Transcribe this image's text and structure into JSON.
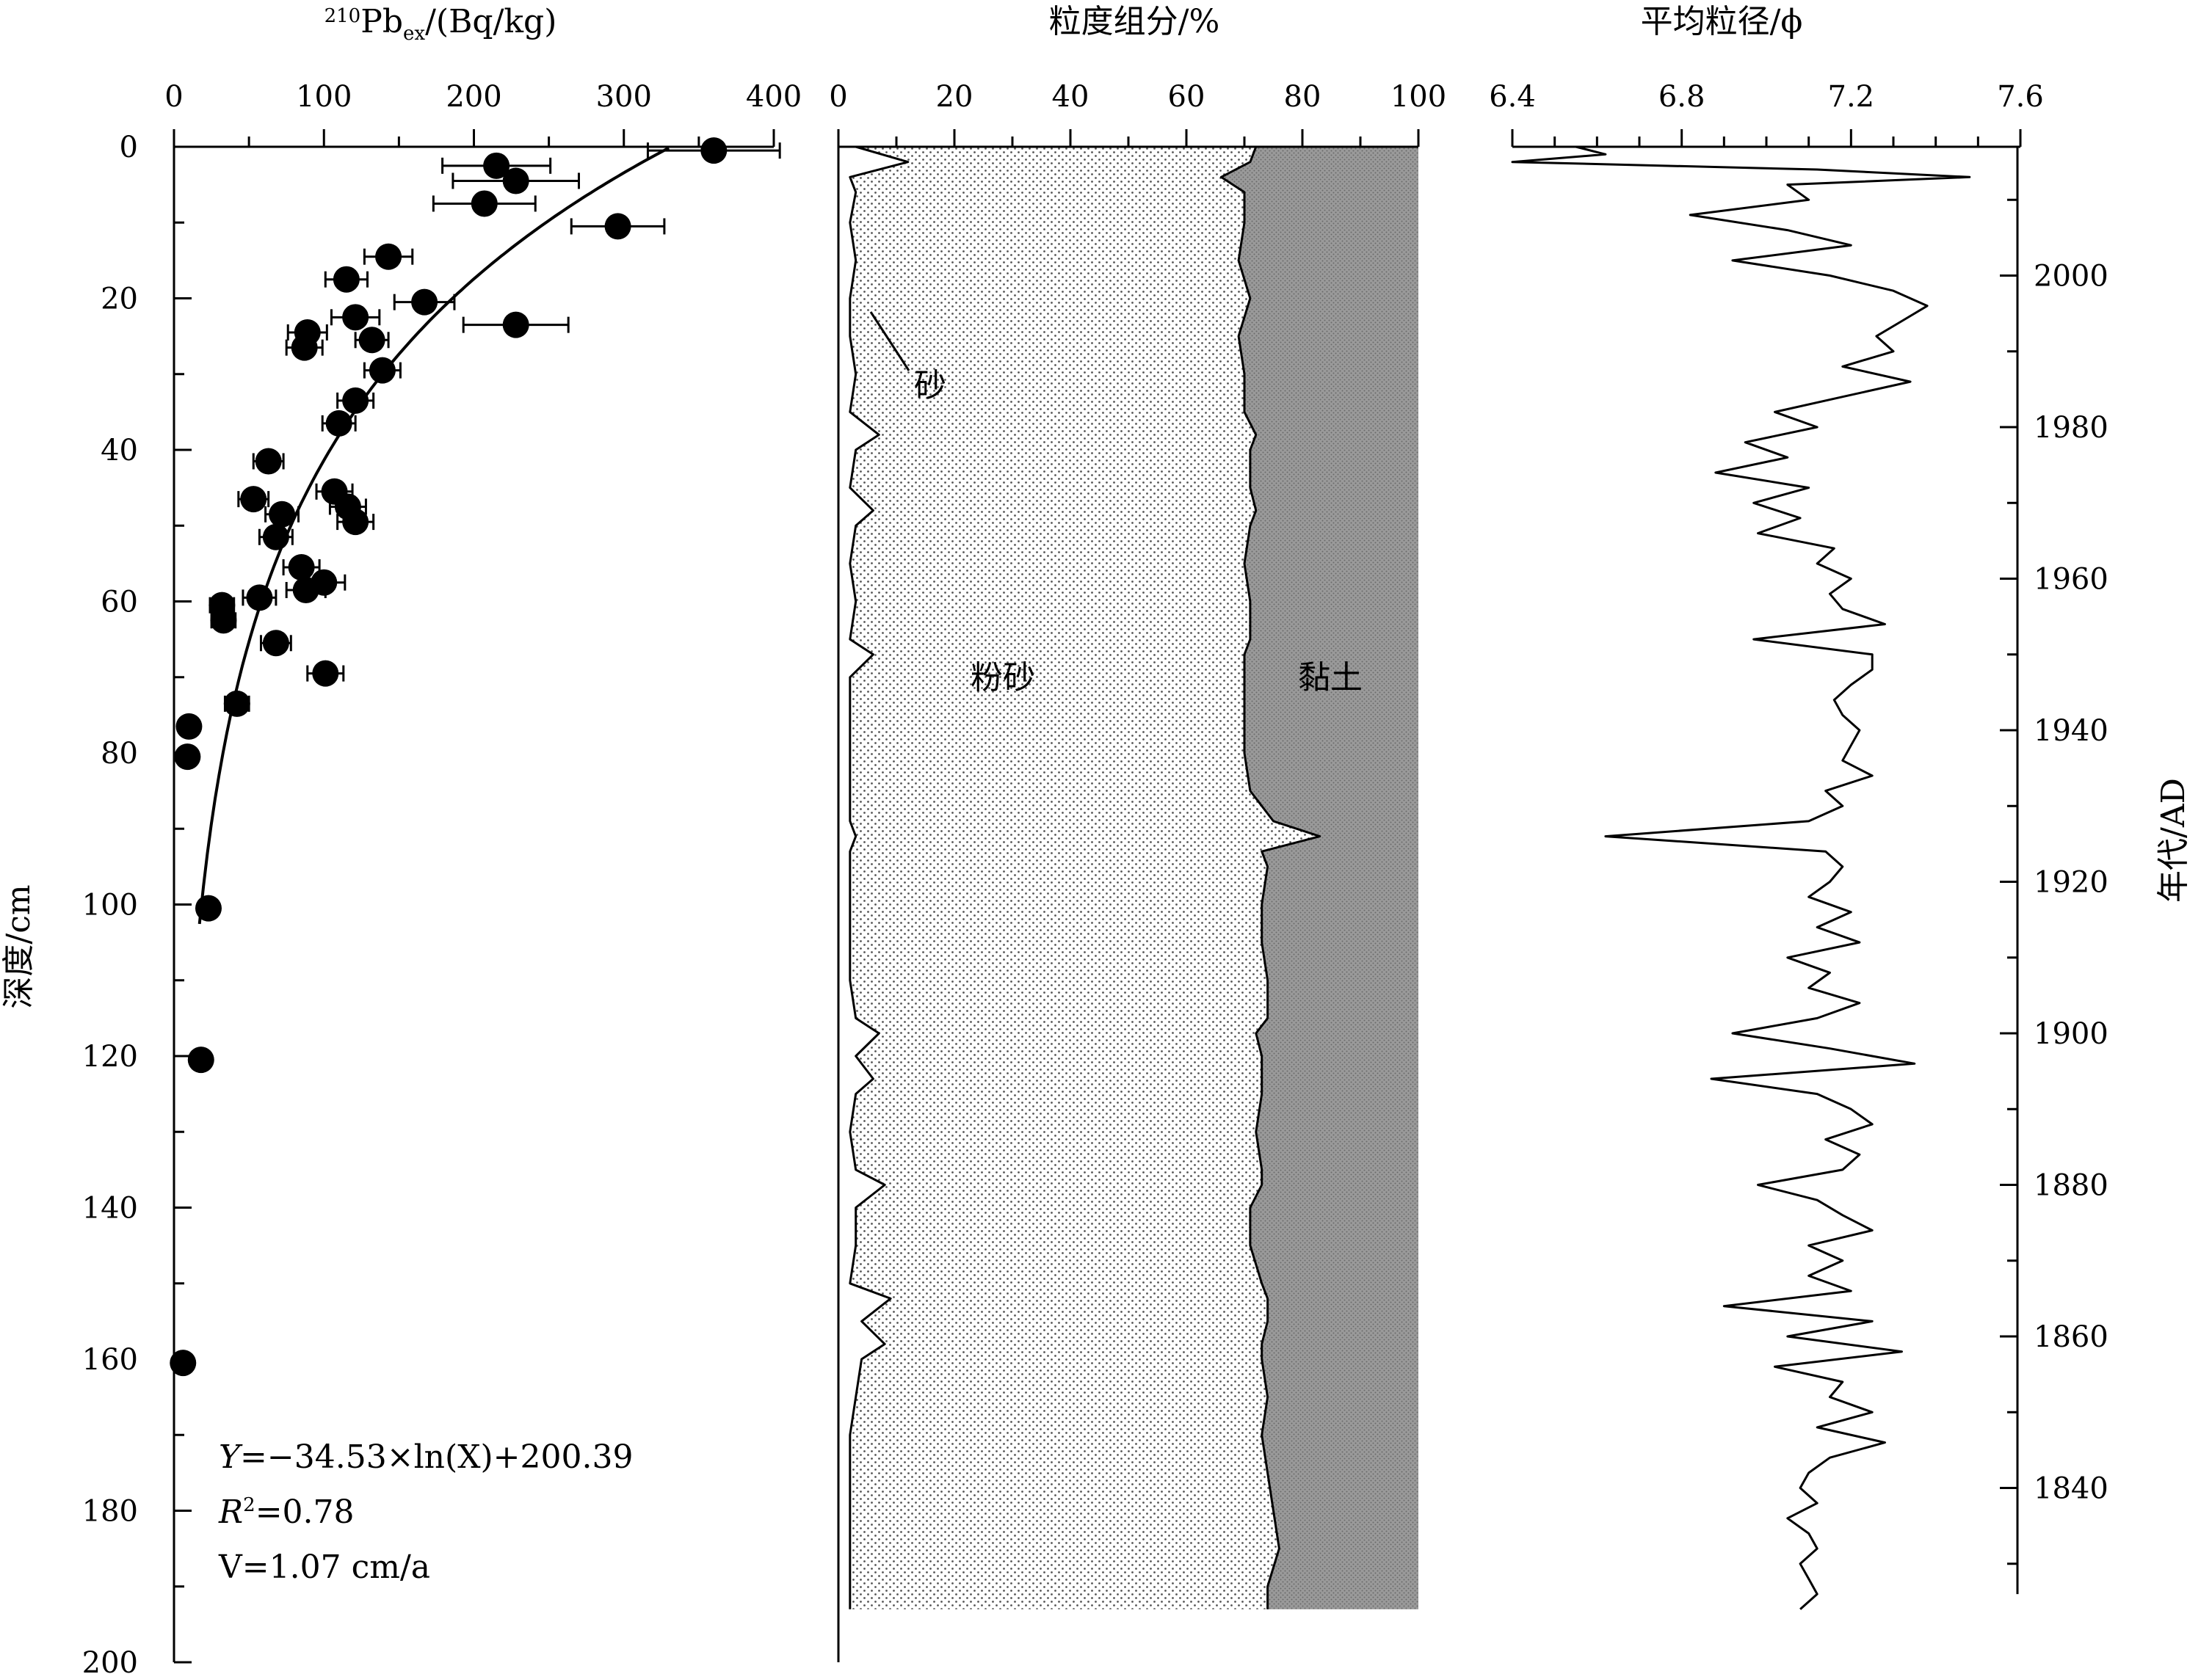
{
  "chart_data": [
    {
      "panel": "pb210",
      "type": "scatter",
      "xlabel_pre": "210",
      "xlabel_main": "Pb",
      "xlabel_sub": "ex",
      "xlabel_post": "/(Bq/kg)",
      "ylabel": "深度/cm",
      "xlim": [
        0,
        400
      ],
      "ylim": [
        0,
        200
      ],
      "xticks": [
        "0",
        "100",
        "200",
        "300",
        "400"
      ],
      "yticks": [
        "0",
        "20",
        "40",
        "60",
        "80",
        "100",
        "120",
        "140",
        "160",
        "180",
        "200"
      ],
      "fit_equation": "Y=−34.53×ln(X)+200.39",
      "fit_equation_y": "Y",
      "fit_equation_rest": "=−34.53×ln(X)+200.39",
      "r2_label": "R",
      "r2_sup": "2",
      "r2_value": "=0.78",
      "rate": "V=1.07 cm/a",
      "fit": {
        "a": -34.53,
        "b": 200.39,
        "x_range": [
          17,
          330
        ]
      },
      "points": [
        {
          "x": 360,
          "depth": 0.5,
          "err": 44
        },
        {
          "x": 215,
          "depth": 2.5,
          "err": 36
        },
        {
          "x": 228,
          "depth": 4.5,
          "err": 42
        },
        {
          "x": 207,
          "depth": 7.5,
          "err": 34
        },
        {
          "x": 296,
          "depth": 10.5,
          "err": 31
        },
        {
          "x": 143,
          "depth": 14.5,
          "err": 16
        },
        {
          "x": 115,
          "depth": 17.5,
          "err": 14
        },
        {
          "x": 167,
          "depth": 20.5,
          "err": 20
        },
        {
          "x": 121,
          "depth": 22.5,
          "err": 16
        },
        {
          "x": 228,
          "depth": 23.5,
          "err": 35
        },
        {
          "x": 89,
          "depth": 24.5,
          "err": 13
        },
        {
          "x": 132,
          "depth": 25.5,
          "err": 11
        },
        {
          "x": 87,
          "depth": 26.5,
          "err": 12
        },
        {
          "x": 139,
          "depth": 29.5,
          "err": 12
        },
        {
          "x": 121,
          "depth": 33.5,
          "err": 12
        },
        {
          "x": 110,
          "depth": 36.5,
          "err": 11
        },
        {
          "x": 63,
          "depth": 41.5,
          "err": 10
        },
        {
          "x": 107,
          "depth": 45.5,
          "err": 12
        },
        {
          "x": 53,
          "depth": 46.5,
          "err": 10
        },
        {
          "x": 116,
          "depth": 47.5,
          "err": 12
        },
        {
          "x": 72,
          "depth": 48.5,
          "err": 11
        },
        {
          "x": 121,
          "depth": 49.5,
          "err": 12
        },
        {
          "x": 68,
          "depth": 51.5,
          "err": 11
        },
        {
          "x": 85,
          "depth": 55.5,
          "err": 12
        },
        {
          "x": 100,
          "depth": 57.5,
          "err": 14
        },
        {
          "x": 88,
          "depth": 58.5,
          "err": 13
        },
        {
          "x": 57,
          "depth": 59.5,
          "err": 11
        },
        {
          "x": 32,
          "depth": 60.5,
          "err": 8
        },
        {
          "x": 33,
          "depth": 62.5,
          "err": 8
        },
        {
          "x": 68,
          "depth": 65.5,
          "err": 10
        },
        {
          "x": 101,
          "depth": 69.5,
          "err": 12
        },
        {
          "x": 42,
          "depth": 73.5,
          "err": 8
        },
        {
          "x": 10,
          "depth": 76.5,
          "err": 0
        },
        {
          "x": 9,
          "depth": 80.5,
          "err": 0
        },
        {
          "x": 23,
          "depth": 100.5,
          "err": 0
        },
        {
          "x": 18,
          "depth": 120.5,
          "err": 0
        },
        {
          "x": 6,
          "depth": 160.5,
          "err": 0
        }
      ]
    },
    {
      "panel": "grain_components",
      "type": "area",
      "title": "粒度组分/%",
      "xlim": [
        0,
        100
      ],
      "xticks": [
        "0",
        "20",
        "40",
        "60",
        "80",
        "100"
      ],
      "annotations": {
        "sand": "砂",
        "silt": "粉砂",
        "clay": "黏土"
      },
      "depth": [
        0,
        2,
        4,
        6,
        10,
        15,
        20,
        25,
        30,
        35,
        38,
        40,
        45,
        48,
        50,
        55,
        60,
        65,
        67,
        70,
        75,
        80,
        85,
        89,
        91,
        93,
        95,
        100,
        105,
        110,
        115,
        117,
        120,
        123,
        125,
        130,
        135,
        137,
        140,
        145,
        150,
        152,
        155,
        158,
        160,
        165,
        170,
        175,
        180,
        185,
        190,
        193
      ],
      "sand": [
        3,
        12,
        2,
        3,
        2,
        3,
        2,
        2,
        3,
        2,
        7,
        3,
        2,
        6,
        3,
        2,
        3,
        2,
        6,
        2,
        2,
        2,
        2,
        2,
        3,
        2,
        2,
        2,
        2,
        2,
        3,
        7,
        3,
        6,
        3,
        2,
        3,
        8,
        3,
        3,
        2,
        9,
        4,
        8,
        4,
        3,
        2,
        2,
        2,
        2,
        2,
        2
      ],
      "sand_silt": [
        72,
        71,
        66,
        70,
        70,
        69,
        71,
        69,
        70,
        70,
        72,
        71,
        71,
        72,
        71,
        70,
        71,
        71,
        70,
        70,
        70,
        70,
        71,
        75,
        83,
        73,
        74,
        73,
        73,
        74,
        74,
        72,
        73,
        73,
        73,
        72,
        73,
        73,
        71,
        71,
        73,
        74,
        74,
        73,
        73,
        74,
        73,
        74,
        75,
        76,
        74,
        74
      ]
    },
    {
      "panel": "mean_grain_size",
      "type": "line",
      "title": "平均粒径/ϕ",
      "ylabel": "年代/AD",
      "xlim": [
        6.4,
        7.6
      ],
      "xticks": [
        "6.4",
        "6.8",
        "7.2",
        "7.6"
      ],
      "yticks": [
        "1840",
        "1860",
        "1880",
        "1900",
        "1920",
        "1940",
        "1960",
        "1980",
        "2000"
      ],
      "year_top": 2017,
      "year_per_cm": 1.0,
      "depth": [
        0,
        1,
        2,
        3,
        4,
        5,
        7,
        9,
        11,
        13,
        15,
        17,
        19,
        21,
        23,
        25,
        27,
        29,
        31,
        33,
        35,
        37,
        39,
        41,
        43,
        45,
        47,
        49,
        51,
        53,
        55,
        57,
        59,
        61,
        63,
        65,
        67,
        69,
        71,
        73,
        75,
        77,
        79,
        81,
        83,
        85,
        87,
        89,
        91,
        93,
        95,
        97,
        99,
        101,
        103,
        105,
        107,
        109,
        111,
        113,
        115,
        117,
        119,
        121,
        123,
        125,
        127,
        129,
        131,
        133,
        135,
        137,
        139,
        141,
        143,
        145,
        147,
        149,
        151,
        153,
        155,
        157,
        159,
        161,
        163,
        165,
        167,
        169,
        171,
        173,
        175,
        177,
        179,
        181,
        183,
        185,
        187,
        189,
        191,
        193
      ],
      "values": [
        6.55,
        6.62,
        6.4,
        7.12,
        7.48,
        7.05,
        7.1,
        6.82,
        7.05,
        7.2,
        6.92,
        7.15,
        7.3,
        7.38,
        7.32,
        7.26,
        7.3,
        7.18,
        7.34,
        7.18,
        7.02,
        7.12,
        6.95,
        7.05,
        6.88,
        7.1,
        6.97,
        7.08,
        6.98,
        7.16,
        7.12,
        7.2,
        7.15,
        7.18,
        7.28,
        6.97,
        7.25,
        7.25,
        7.2,
        7.16,
        7.18,
        7.22,
        7.2,
        7.18,
        7.25,
        7.14,
        7.18,
        7.1,
        6.62,
        7.14,
        7.18,
        7.15,
        7.1,
        7.2,
        7.12,
        7.22,
        7.05,
        7.15,
        7.1,
        7.22,
        7.12,
        6.92,
        7.15,
        7.35,
        6.87,
        7.12,
        7.2,
        7.25,
        7.14,
        7.22,
        7.18,
        6.98,
        7.12,
        7.18,
        7.25,
        7.1,
        7.18,
        7.1,
        7.2,
        6.9,
        7.25,
        7.05,
        7.32,
        7.02,
        7.18,
        7.15,
        7.25,
        7.12,
        7.28,
        7.15,
        7.1,
        7.08,
        7.12,
        7.05,
        7.1,
        7.12,
        7.08,
        7.1,
        7.12,
        7.08
      ]
    }
  ]
}
